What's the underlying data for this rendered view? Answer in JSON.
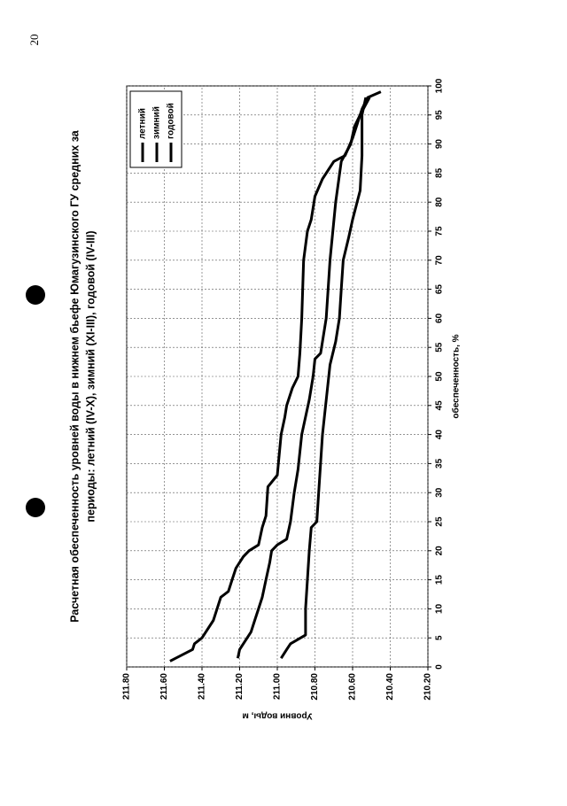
{
  "page_number": "20",
  "chart_data": {
    "type": "line",
    "title": [
      "Расчетная обеспеченность уровней воды в нижнем бьефе Юмагузинского ГУ средних за",
      "периоды: летний (IV-X), зимний (XI-III), годовой (IV-III)"
    ],
    "x_label": "обеспеченность, %",
    "y_label": "Уровни воды, м",
    "xlim": [
      0,
      100
    ],
    "xticks": [
      0,
      5,
      10,
      15,
      20,
      25,
      30,
      35,
      40,
      45,
      50,
      55,
      60,
      65,
      70,
      75,
      80,
      85,
      90,
      95,
      100
    ],
    "ylim": [
      210.2,
      211.8
    ],
    "yticks": [
      {
        "value": 210.2,
        "label": "210.20"
      },
      {
        "value": 210.4,
        "label": "210.40"
      },
      {
        "value": 210.6,
        "label": "210.60"
      },
      {
        "value": 210.8,
        "label": "210.80"
      },
      {
        "value": 211.0,
        "label": "211.00"
      },
      {
        "value": 211.2,
        "label": "211.20"
      },
      {
        "value": 211.4,
        "label": "211.40"
      },
      {
        "value": 211.6,
        "label": "211.60"
      },
      {
        "value": 211.8,
        "label": "211.80"
      }
    ],
    "grid": true,
    "legend": "upper right",
    "series": [
      {
        "name": "летний",
        "color": "#000000",
        "x": [
          1,
          3,
          4,
          5,
          8,
          10,
          12,
          13,
          15,
          17,
          19,
          20,
          21,
          24,
          26,
          31,
          33,
          40,
          43,
          45,
          48,
          50,
          54,
          60,
          70,
          75,
          77,
          81,
          84,
          87,
          88,
          91,
          94,
          96,
          98,
          99
        ],
        "values": [
          211.57,
          211.45,
          211.44,
          211.4,
          211.34,
          211.32,
          211.3,
          211.26,
          211.24,
          211.22,
          211.18,
          211.15,
          211.1,
          211.08,
          211.06,
          211.05,
          211.0,
          210.98,
          210.96,
          210.95,
          210.92,
          210.89,
          210.88,
          210.87,
          210.86,
          210.84,
          210.82,
          210.8,
          210.76,
          210.7,
          210.64,
          210.6,
          210.57,
          210.55,
          210.52,
          210.45
        ]
      },
      {
        "name": "зимний",
        "color": "#000000",
        "x": [
          1.5,
          3,
          4,
          5.5,
          10,
          20,
          24,
          25,
          30,
          40,
          52,
          56,
          60,
          65,
          70,
          74,
          77,
          82,
          88,
          95,
          98
        ],
        "values": [
          210.98,
          210.95,
          210.93,
          210.85,
          210.85,
          210.83,
          210.82,
          210.79,
          210.78,
          210.76,
          210.72,
          210.69,
          210.67,
          210.66,
          210.65,
          210.62,
          210.6,
          210.56,
          210.55,
          210.55,
          210.53
        ]
      },
      {
        "name": "годовой",
        "color": "#000000",
        "x": [
          1.5,
          3,
          4,
          6,
          8,
          10,
          12,
          15,
          18,
          20,
          21,
          22,
          25,
          30,
          34,
          40,
          46,
          50,
          53,
          54,
          60,
          70,
          80,
          87,
          90,
          93,
          95,
          98
        ],
        "values": [
          211.21,
          211.2,
          211.18,
          211.14,
          211.12,
          211.1,
          211.08,
          211.06,
          211.04,
          211.03,
          211.0,
          210.95,
          210.93,
          210.91,
          210.89,
          210.87,
          210.83,
          210.81,
          210.8,
          210.77,
          210.74,
          210.72,
          210.69,
          210.66,
          210.61,
          210.59,
          210.56,
          210.51
        ]
      }
    ]
  }
}
